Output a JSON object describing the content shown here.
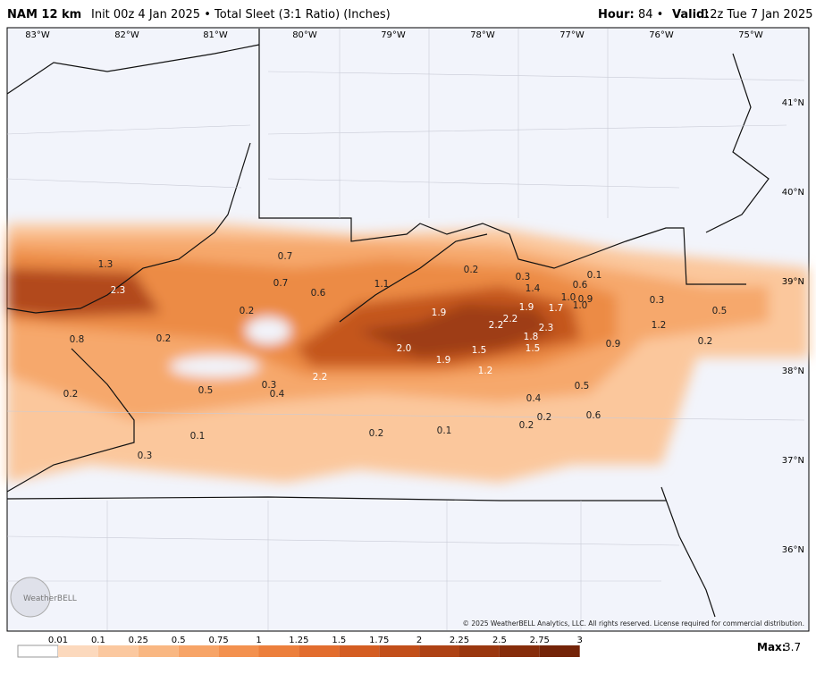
{
  "header": {
    "model": "NAM 12 km",
    "description": "Init 00z 4 Jan 2025 • Total Sleet (3:1 Ratio) (Inches)",
    "hour_label": "Hour:",
    "hour": "84 •",
    "valid_label": "Valid:",
    "valid": "12z Tue 7 Jan 2025"
  },
  "longitude_labels": [
    "83°W",
    "82°W",
    "81°W",
    "80°W",
    "79°W",
    "78°W",
    "77°W",
    "76°W",
    "75°W"
  ],
  "latitude_labels": [
    "41°N",
    "40°N",
    "39°N",
    "38°N",
    "37°N",
    "36°N"
  ],
  "map_labels": [
    "1.3",
    "2.3",
    "0.8",
    "0.2",
    "0.2",
    "0.7",
    "0.7",
    "0.6",
    "1.1",
    "0.2",
    "0.3",
    "1.4",
    "0.1",
    "0.6",
    "1.0",
    "0.9",
    "1.0",
    "1.9",
    "1.7",
    "2.2",
    "2.2",
    "1.9",
    "2.3",
    "1.8",
    "1.5",
    "0.3",
    "1.2",
    "0.5",
    "0.2",
    "0.9",
    "2.0",
    "1.5",
    "1.9",
    "1.2",
    "2.2",
    "0.3",
    "0.4",
    "0.5",
    "0.2",
    "0.5",
    "0.4",
    "0.2",
    "0.6",
    "0.2",
    "0.1",
    "0.2",
    "0.1",
    "0.3"
  ],
  "logo": "WeatherBELL",
  "copyright": "© 2025 WeatherBELL Analytics, LLC. All rights reserved. License required for commercial distribution.",
  "legend": {
    "ticks": [
      "0.01",
      "0.1",
      "0.25",
      "0.5",
      "0.75",
      "1",
      "1.25",
      "1.5",
      "1.75",
      "2",
      "2.25",
      "2.5",
      "2.75",
      "3"
    ]
  },
  "max": {
    "label": "Max:",
    "value": "3.7"
  }
}
